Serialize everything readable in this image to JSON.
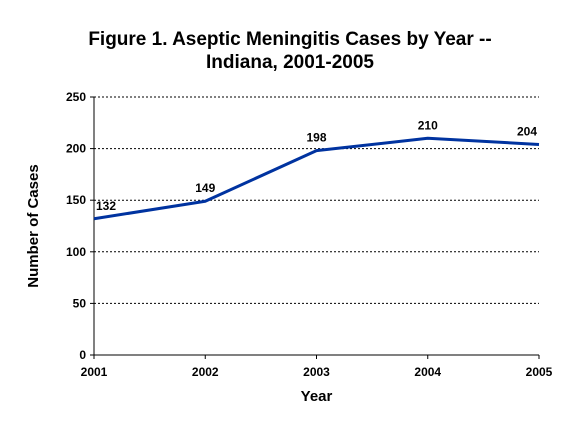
{
  "chart_data": {
    "type": "line",
    "title_lines": [
      "Figure 1.  Aseptic Meningitis Cases by Year --",
      "Indiana, 2001-2005"
    ],
    "xlabel": "Year",
    "ylabel": "Number of Cases",
    "categories": [
      "2001",
      "2002",
      "2003",
      "2004",
      "2005"
    ],
    "series": [
      {
        "values": [
          132,
          149,
          198,
          210,
          204
        ]
      }
    ],
    "data_labels": [
      "132",
      "149",
      "198",
      "210",
      "204"
    ],
    "ylim": [
      0,
      250
    ],
    "yticks": [
      "0",
      "50",
      "100",
      "150",
      "200",
      "250"
    ],
    "grid": "horizontal-dashed",
    "legend": "none",
    "line_color": "#0033a0"
  }
}
